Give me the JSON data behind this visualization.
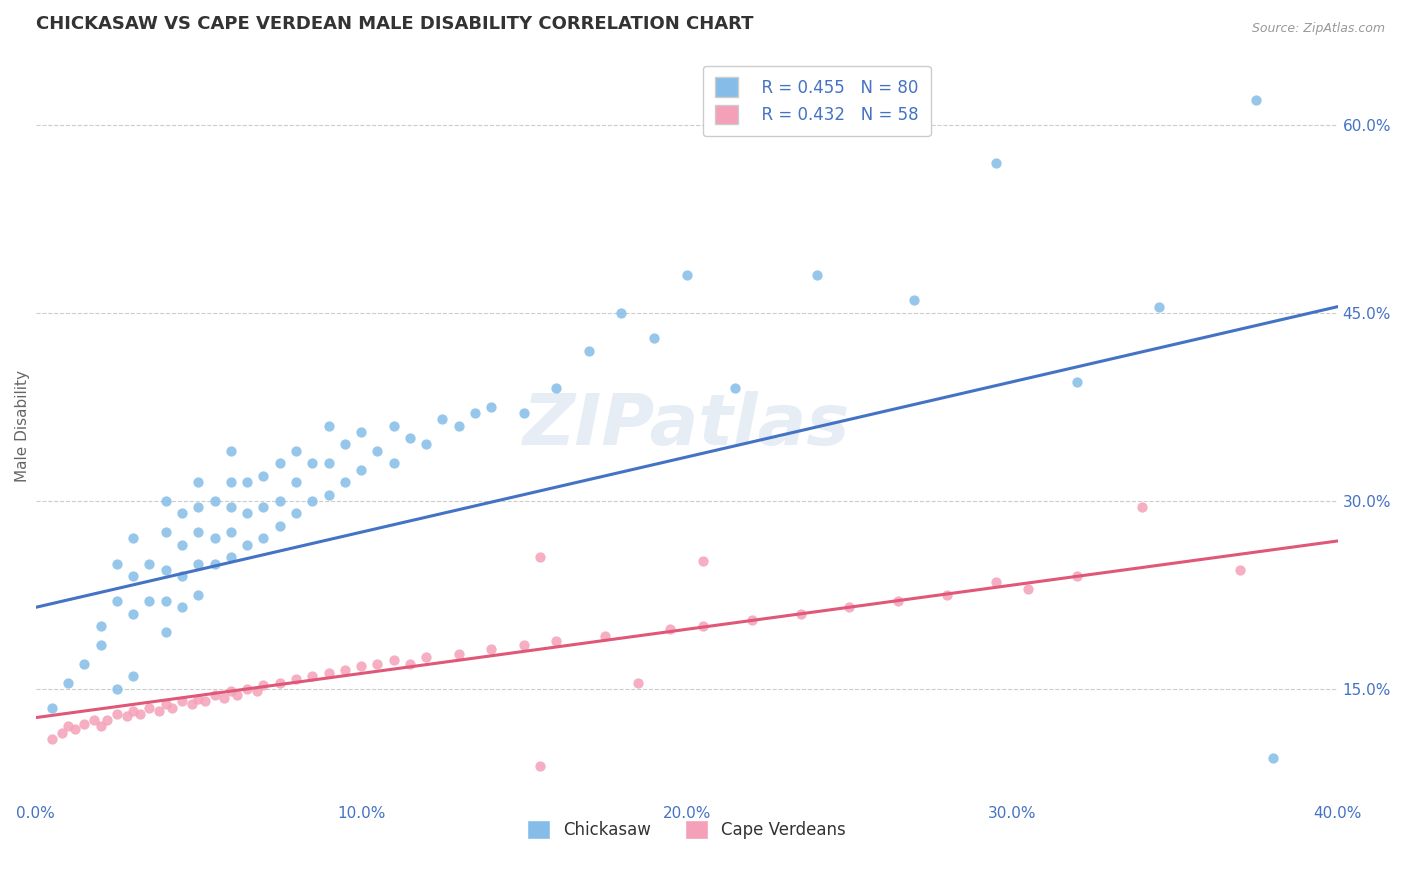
{
  "title": "CHICKASAW VS CAPE VERDEAN MALE DISABILITY CORRELATION CHART",
  "source_text": "Source: ZipAtlas.com",
  "ylabel": "Male Disability",
  "xlim": [
    0.0,
    0.4
  ],
  "ylim": [
    0.06,
    0.66
  ],
  "xtick_labels": [
    "0.0%",
    "10.0%",
    "20.0%",
    "30.0%",
    "40.0%"
  ],
  "xtick_vals": [
    0.0,
    0.1,
    0.2,
    0.3,
    0.4
  ],
  "ytick_labels": [
    "15.0%",
    "30.0%",
    "45.0%",
    "60.0%"
  ],
  "ytick_vals": [
    0.15,
    0.3,
    0.45,
    0.6
  ],
  "grid_color": "#cccccc",
  "background_color": "#ffffff",
  "watermark": "ZIPatlas",
  "chickasaw_color": "#85bce8",
  "cape_verdean_color": "#f4a0b8",
  "chickasaw_line_color": "#4472c4",
  "cape_verdean_line_color": "#e05878",
  "legend_R1": "R = 0.455",
  "legend_N1": "N = 80",
  "legend_R2": "R = 0.432",
  "legend_N2": "N = 58",
  "legend_label1": "Chickasaw",
  "legend_label2": "Cape Verdeans",
  "chickasaw_line_x0": 0.0,
  "chickasaw_line_y0": 0.215,
  "chickasaw_line_x1": 0.4,
  "chickasaw_line_y1": 0.455,
  "cape_line_x0": 0.0,
  "cape_line_y0": 0.127,
  "cape_line_x1": 0.4,
  "cape_line_y1": 0.268,
  "chickasaw_x": [
    0.005,
    0.01,
    0.015,
    0.02,
    0.02,
    0.025,
    0.025,
    0.025,
    0.03,
    0.03,
    0.03,
    0.03,
    0.035,
    0.035,
    0.04,
    0.04,
    0.04,
    0.04,
    0.04,
    0.045,
    0.045,
    0.045,
    0.045,
    0.05,
    0.05,
    0.05,
    0.05,
    0.05,
    0.055,
    0.055,
    0.055,
    0.06,
    0.06,
    0.06,
    0.06,
    0.06,
    0.065,
    0.065,
    0.065,
    0.07,
    0.07,
    0.07,
    0.075,
    0.075,
    0.075,
    0.08,
    0.08,
    0.08,
    0.085,
    0.085,
    0.09,
    0.09,
    0.09,
    0.095,
    0.095,
    0.1,
    0.1,
    0.105,
    0.11,
    0.11,
    0.115,
    0.12,
    0.125,
    0.13,
    0.135,
    0.14,
    0.15,
    0.16,
    0.17,
    0.18,
    0.19,
    0.2,
    0.215,
    0.24,
    0.27,
    0.295,
    0.32,
    0.345,
    0.375,
    0.38
  ],
  "chickasaw_y": [
    0.135,
    0.155,
    0.17,
    0.185,
    0.2,
    0.15,
    0.22,
    0.25,
    0.16,
    0.21,
    0.24,
    0.27,
    0.22,
    0.25,
    0.195,
    0.22,
    0.245,
    0.275,
    0.3,
    0.215,
    0.24,
    0.265,
    0.29,
    0.225,
    0.25,
    0.275,
    0.295,
    0.315,
    0.25,
    0.27,
    0.3,
    0.255,
    0.275,
    0.295,
    0.315,
    0.34,
    0.265,
    0.29,
    0.315,
    0.27,
    0.295,
    0.32,
    0.28,
    0.3,
    0.33,
    0.29,
    0.315,
    0.34,
    0.3,
    0.33,
    0.305,
    0.33,
    0.36,
    0.315,
    0.345,
    0.325,
    0.355,
    0.34,
    0.33,
    0.36,
    0.35,
    0.345,
    0.365,
    0.36,
    0.37,
    0.375,
    0.37,
    0.39,
    0.42,
    0.45,
    0.43,
    0.48,
    0.39,
    0.48,
    0.46,
    0.57,
    0.395,
    0.455,
    0.62,
    0.095
  ],
  "cape_verdean_x": [
    0.005,
    0.008,
    0.01,
    0.012,
    0.015,
    0.018,
    0.02,
    0.022,
    0.025,
    0.028,
    0.03,
    0.032,
    0.035,
    0.038,
    0.04,
    0.042,
    0.045,
    0.048,
    0.05,
    0.052,
    0.055,
    0.058,
    0.06,
    0.062,
    0.065,
    0.068,
    0.07,
    0.075,
    0.08,
    0.085,
    0.09,
    0.095,
    0.1,
    0.105,
    0.11,
    0.115,
    0.12,
    0.13,
    0.14,
    0.15,
    0.155,
    0.16,
    0.175,
    0.185,
    0.195,
    0.205,
    0.22,
    0.235,
    0.25,
    0.265,
    0.28,
    0.295,
    0.305,
    0.32,
    0.155,
    0.205,
    0.34,
    0.37
  ],
  "cape_verdean_y": [
    0.11,
    0.115,
    0.12,
    0.118,
    0.122,
    0.125,
    0.12,
    0.125,
    0.13,
    0.128,
    0.132,
    0.13,
    0.135,
    0.132,
    0.138,
    0.135,
    0.14,
    0.138,
    0.142,
    0.14,
    0.145,
    0.143,
    0.148,
    0.145,
    0.15,
    0.148,
    0.153,
    0.155,
    0.158,
    0.16,
    0.163,
    0.165,
    0.168,
    0.17,
    0.173,
    0.17,
    0.175,
    0.178,
    0.182,
    0.185,
    0.088,
    0.188,
    0.192,
    0.155,
    0.198,
    0.2,
    0.205,
    0.21,
    0.215,
    0.22,
    0.225,
    0.235,
    0.23,
    0.24,
    0.255,
    0.252,
    0.295,
    0.245
  ],
  "title_fontsize": 13,
  "axis_label_fontsize": 11,
  "tick_fontsize": 11,
  "legend_fontsize": 12
}
